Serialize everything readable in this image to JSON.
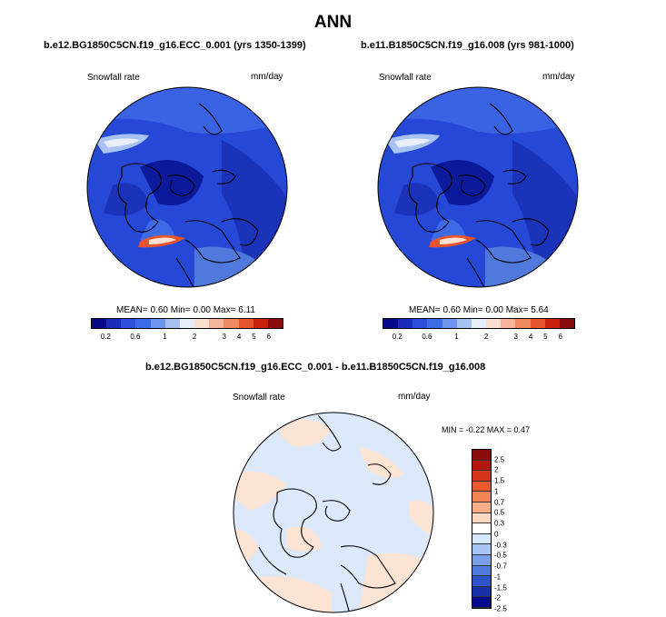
{
  "title": "ANN",
  "panels": [
    {
      "title": "b.e12.BG1850C5CN.f19_g16.ECC_0.001 (yrs 1350-1399)",
      "variable": "Snowfall rate",
      "units": "mm/day",
      "stats": "MEAN=  0.60  Min=  0.00  Max=  6.11"
    },
    {
      "title": "b.e11.B1850C5CN.f19_g16.008 (yrs 981-1000)",
      "variable": "Snowfall rate",
      "units": "mm/day",
      "stats": "MEAN=  0.60  Min=  0.00  Max=  5.64"
    }
  ],
  "diff_panel": {
    "title": "b.e12.BG1850C5CN.f19_g16.ECC_0.001 - b.e11.B1850C5CN.f19_g16.008",
    "variable": "Snowfall rate",
    "units": "mm/day",
    "stats": "MIN = -0.22 MAX =  0.47"
  },
  "colorbar_top": {
    "colors": [
      "#08088a",
      "#1c2bb8",
      "#2b4fd9",
      "#3f6ae6",
      "#6e94ec",
      "#a7c1f2",
      "#e6eefb",
      "#fbe0d0",
      "#f6b49a",
      "#f08a62",
      "#e6542f",
      "#c9200e",
      "#8a0b0b"
    ],
    "labels": [
      "0.2",
      "0.6",
      "1",
      "2",
      "3",
      "4",
      "5",
      "6"
    ]
  },
  "colorbar_diff": {
    "colors": [
      "#8a0b0b",
      "#b3170f",
      "#d63418",
      "#ea5a2e",
      "#f38456",
      "#f7ad86",
      "#fbd9c2",
      "#ffffff",
      "#d6e6fb",
      "#a9c5f3",
      "#7a9fea",
      "#4f79dd",
      "#2f53c8",
      "#1631a8",
      "#08088a"
    ],
    "labels": [
      "2.5",
      "2",
      "1.5",
      "1",
      "0.7",
      "0.5",
      "0.3",
      "0",
      "-0.3",
      "-0.5",
      "-0.7",
      "-1",
      "-1.5",
      "-2",
      "-2.5"
    ]
  }
}
